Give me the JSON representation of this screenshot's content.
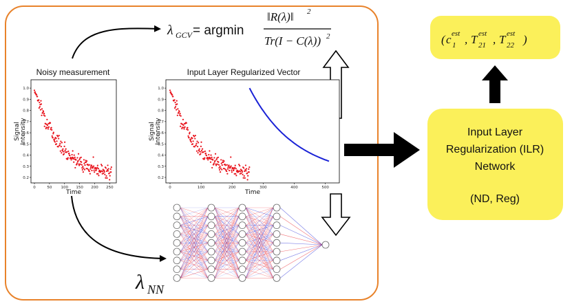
{
  "left_plot": {
    "title": "Noisy measurement",
    "xlabel": "Time",
    "ylabel_line1": "Signal",
    "ylabel_line2": "Intensity",
    "xticks": [
      "0",
      "50",
      "100",
      "150",
      "200",
      "250"
    ],
    "yticks": [
      "0.2",
      "0.3",
      "0.4",
      "0.5",
      "0.6",
      "0.7",
      "0.8",
      "0.9",
      "1.0"
    ]
  },
  "mid_plot": {
    "title": "Input Layer Regularized Vector",
    "xlabel": "Time",
    "ylabel_line1": "Signal",
    "ylabel_line2": "Intensity",
    "xticks": [
      "0",
      "100",
      "200",
      "300",
      "400",
      "500"
    ],
    "yticks": [
      "0.2",
      "0.3",
      "0.4",
      "0.5",
      "0.6",
      "0.7",
      "0.8",
      "0.9",
      "1.0"
    ]
  },
  "formula": {
    "lambda": "λ",
    "lambda_sub": "GCV",
    "equals_argmin": "= argmin",
    "numerator": "‖R(λ)‖",
    "numerator_sup": "2",
    "denominator": "Tr(I − C(λ))",
    "denominator_sup": "2"
  },
  "lambda_nn": {
    "lambda": "λ",
    "sub": "NN"
  },
  "ilr_box": {
    "line1": "Input Layer",
    "line2": "Regularization (ILR)",
    "line3": "Network",
    "line4": "(ND, Reg)"
  },
  "output_box": {
    "open": "(",
    "c": "c",
    "c_sup": "est",
    "c_sub": "1",
    "t21": "T",
    "t21_sup": "est",
    "t21_sub": "21",
    "t22": "T",
    "t22_sup": "est",
    "t22_sub": "22",
    "comma": ",",
    "close": ")"
  },
  "colors": {
    "frame": "#e8822a",
    "yellow": "#fbf05a",
    "points": "#e8121b",
    "curve": "#1a22d6",
    "arrow": "#000000"
  }
}
